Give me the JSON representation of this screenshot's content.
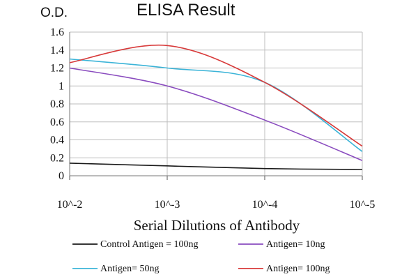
{
  "chart_data": {
    "type": "line",
    "title": "ELISA Result",
    "ylabel": "O.D.",
    "xlabel": "Serial Dilutions of Antibody",
    "categories": [
      "10^-2",
      "10^-3",
      "10^-4",
      "10^-5"
    ],
    "ylim": [
      0,
      1.6
    ],
    "yticks": [
      "0",
      "0.2",
      "0.4",
      "0.6",
      "0.8",
      "1",
      "1.2",
      "1.4",
      "1.6"
    ],
    "grid": true,
    "legend_position": "bottom",
    "series": [
      {
        "name": "Control Antigen = 100ng",
        "color": "#1a1a1a",
        "values": [
          0.14,
          0.11,
          0.08,
          0.07
        ]
      },
      {
        "name": "Antigen= 10ng",
        "color": "#8a4cbf",
        "values": [
          1.2,
          1.0,
          0.62,
          0.17
        ]
      },
      {
        "name": "Antigen= 50ng",
        "color": "#3cb4d8",
        "values": [
          1.3,
          1.2,
          1.04,
          0.27
        ]
      },
      {
        "name": "Antigen= 100ng",
        "color": "#d83a3a",
        "values": [
          1.26,
          1.45,
          1.04,
          0.33
        ]
      }
    ]
  }
}
